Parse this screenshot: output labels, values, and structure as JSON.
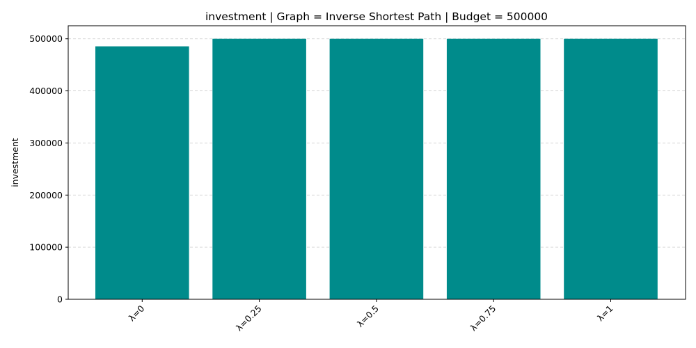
{
  "chart_data": {
    "type": "bar",
    "title": "investment | Graph = Inverse Shortest Path | Budget = 500000",
    "xlabel": "",
    "ylabel": "investment",
    "categories": [
      "λ=0",
      "λ=0.25",
      "λ=0.5",
      "λ=0.75",
      "λ=1"
    ],
    "values": [
      485500,
      500000,
      500000,
      500000,
      500000
    ],
    "ylim": [
      0,
      525000
    ],
    "yticks": [
      0,
      100000,
      200000,
      300000,
      400000,
      500000
    ],
    "grid": "y-dashed",
    "bar_color": "#008b8b",
    "grid_color": "#cccccc",
    "x_tick_rotation_deg": 45
  }
}
